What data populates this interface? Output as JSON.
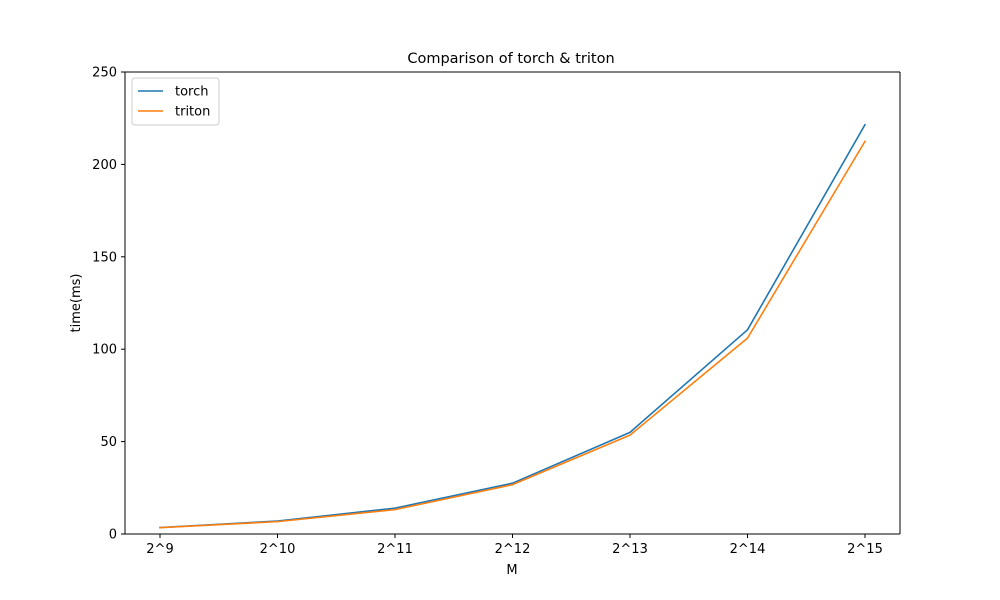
{
  "chart_data": {
    "type": "line",
    "title": "Comparison of torch & triton",
    "xlabel": "M",
    "ylabel": "time(ms)",
    "categories": [
      "2^9",
      "2^10",
      "2^11",
      "2^12",
      "2^13",
      "2^14",
      "2^15"
    ],
    "ylim": [
      0,
      250
    ],
    "yticks": [
      0,
      50,
      100,
      150,
      200,
      250
    ],
    "grid": false,
    "legend_position": "top-left",
    "series": [
      {
        "name": "torch",
        "color": "#1f77b4",
        "values": [
          3.5,
          7.0,
          14.0,
          27.5,
          55.0,
          110.5,
          221.5
        ]
      },
      {
        "name": "triton",
        "color": "#ff7f0e",
        "values": [
          3.4,
          6.7,
          13.2,
          26.7,
          53.5,
          106.0,
          212.5
        ]
      }
    ]
  }
}
